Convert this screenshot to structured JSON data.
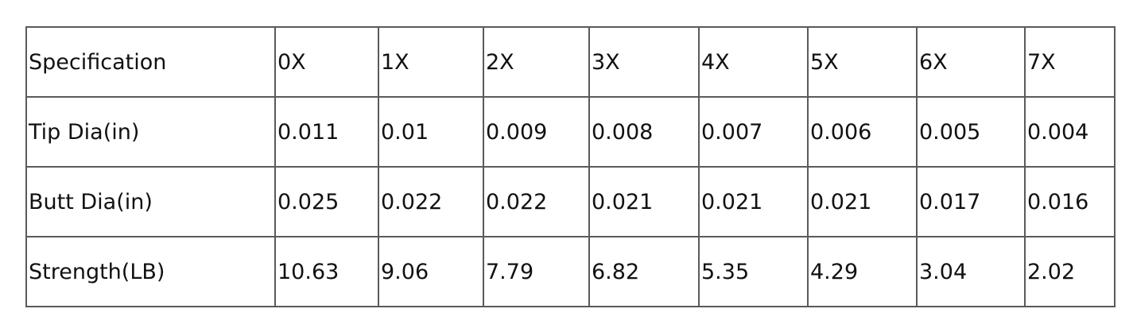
{
  "table": {
    "header": [
      "Specification",
      "0X",
      "1X",
      "2X",
      "3X",
      "4X",
      "5X",
      "6X",
      "7X"
    ],
    "rows": [
      [
        "Tip Dia(in)",
        "0.011",
        "0.01",
        "0.009",
        "0.008",
        "0.007",
        "0.006",
        "0.005",
        "0.004"
      ],
      [
        "Butt Dia(in)",
        "0.025",
        "0.022",
        "0.022",
        "0.021",
        "0.021",
        "0.021",
        "0.017",
        "0.016"
      ],
      [
        "Strength(LB)",
        "10.63",
        "9.06",
        "7.79",
        "6.82",
        "5.35",
        "4.29",
        "3.04",
        "2.02"
      ]
    ]
  }
}
